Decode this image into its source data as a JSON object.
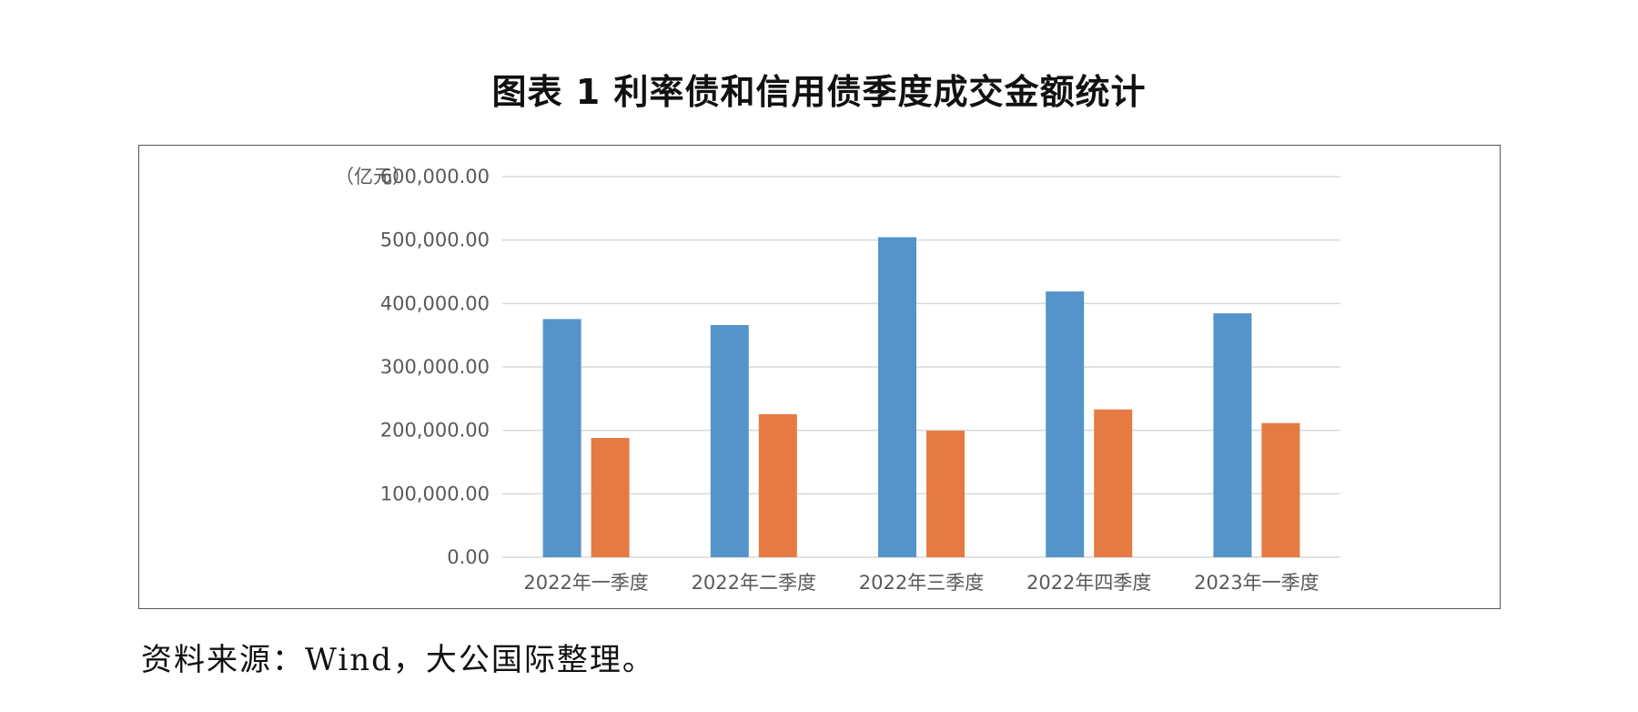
{
  "figure": {
    "title": "图表 1  利率债和信用债季度成交金额统计",
    "source": "资料来源：Wind，大公国际整理。"
  },
  "chart_data": {
    "type": "bar",
    "unit_label": "（亿元）",
    "categories": [
      "2022年一季度",
      "2022年二季度",
      "2022年三季度",
      "2022年四季度",
      "2023年一季度"
    ],
    "series": [
      {
        "color": "#5594C9",
        "values": [
          375500,
          366000,
          504500,
          419000,
          384500
        ]
      },
      {
        "color": "#E57A42",
        "values": [
          188000,
          225500,
          199500,
          233000,
          211500
        ]
      }
    ],
    "yticks": [
      "0.00",
      "100,000.00",
      "200,000.00",
      "300,000.00",
      "400,000.00",
      "500,000.00",
      "600,000.00"
    ],
    "ylim": [
      0,
      600000
    ],
    "grid": true,
    "colors": {
      "grid": "#D9D9D9",
      "axis": "#D9D9D9",
      "tick_text": "#595959"
    }
  }
}
